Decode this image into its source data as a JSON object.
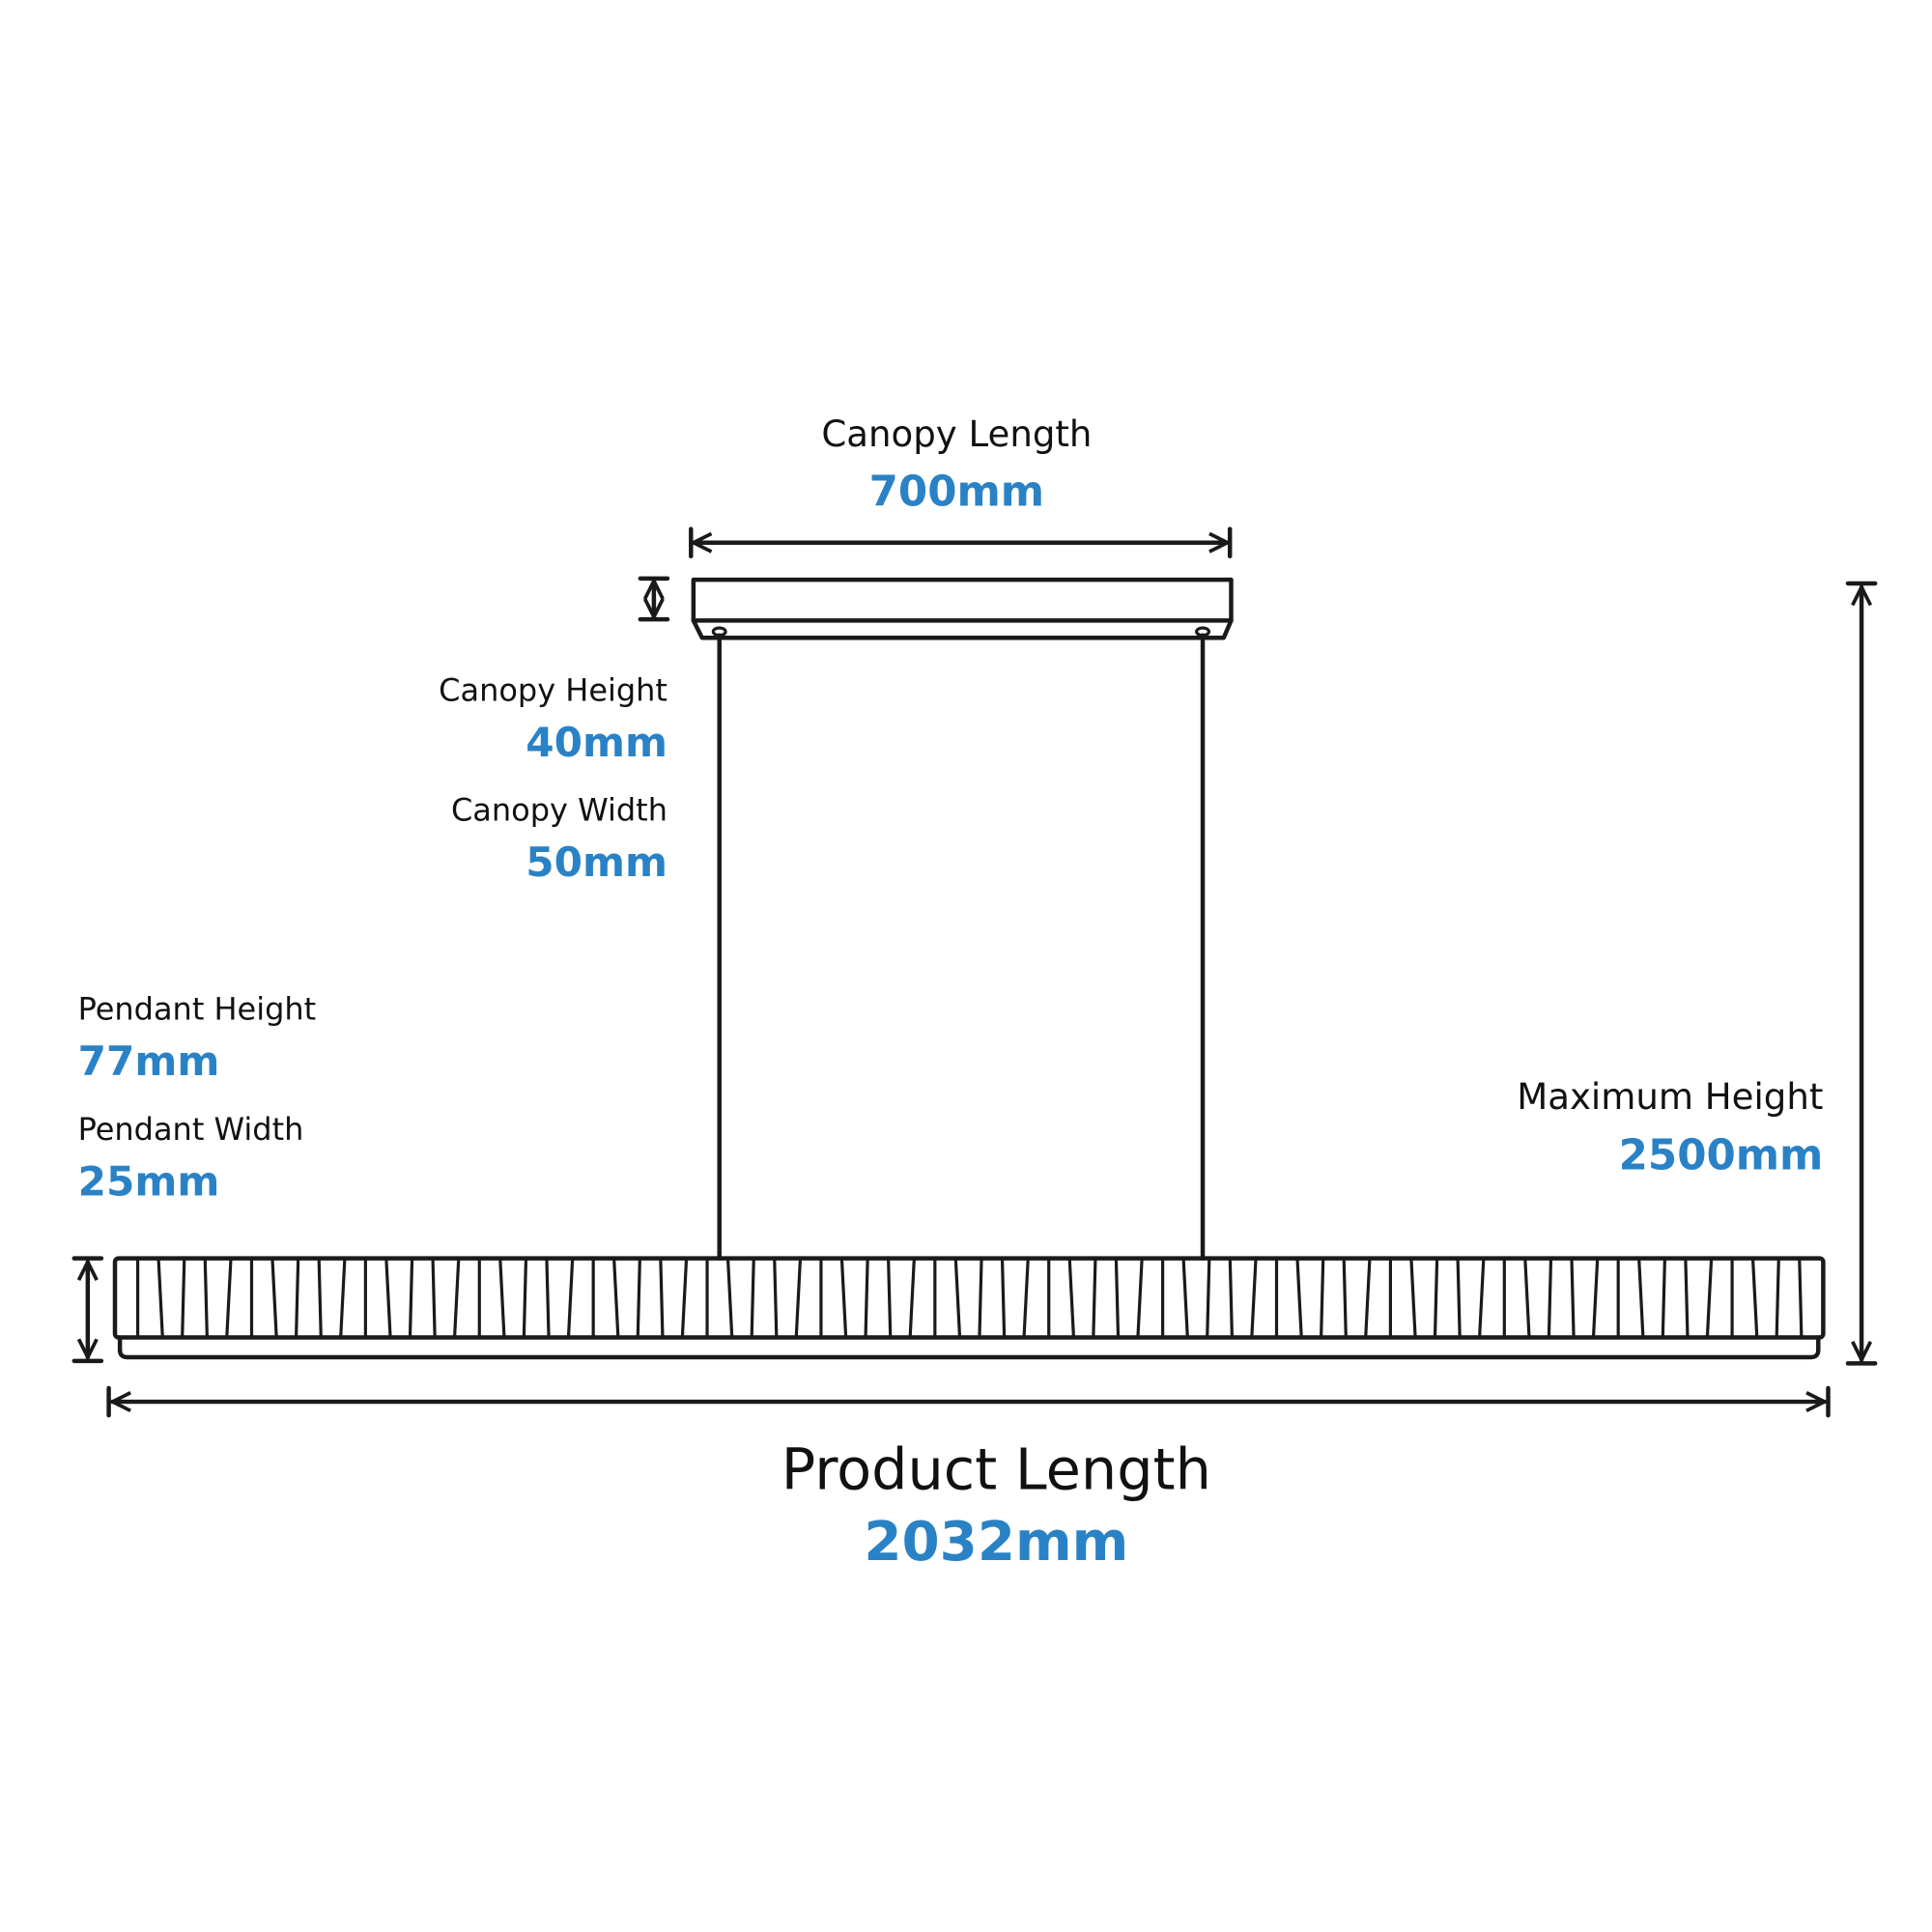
{
  "dimensions": {
    "canopy_length": {
      "label": "Canopy Length",
      "value": "700mm"
    },
    "canopy_height": {
      "label": "Canopy Height",
      "value": "40mm"
    },
    "canopy_width": {
      "label": "Canopy Width",
      "value": "50mm"
    },
    "pendant_height": {
      "label": "Pendant Height",
      "value": "77mm"
    },
    "pendant_width": {
      "label": "Pendant Width",
      "value": "25mm"
    },
    "maximum_height": {
      "label": "Maximum Height",
      "value": "2500mm"
    },
    "product_length": {
      "label": "Product Length",
      "value": "2032mm"
    }
  }
}
